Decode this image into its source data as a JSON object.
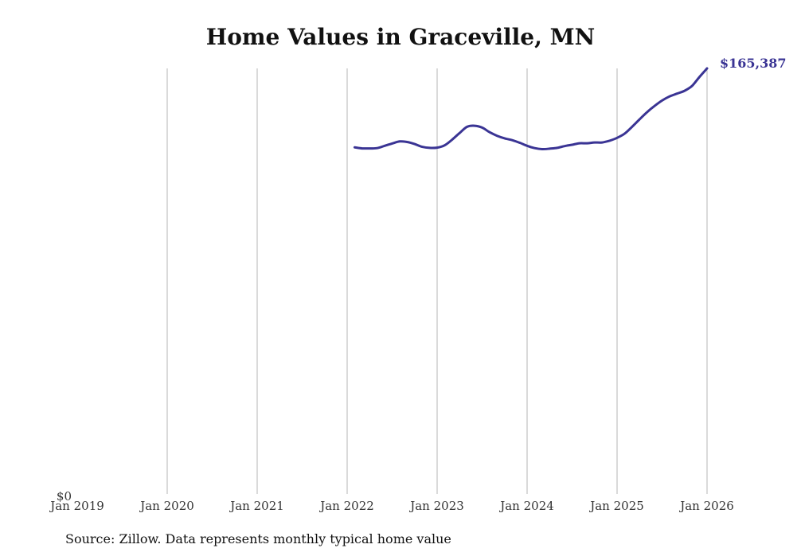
{
  "chart_data": {
    "type": "line",
    "title": "Home Values in Graceville, MN",
    "source": "Source: Zillow. Data represents monthly typical home value",
    "xlabel": "",
    "ylabel": "",
    "x_range": [
      "2019-01",
      "2026-01"
    ],
    "ylim": [
      0,
      165387
    ],
    "y_tick_labels": [
      "$0"
    ],
    "x_tick_labels": [
      "Jan 2019",
      "Jan 2020",
      "Jan 2021",
      "Jan 2022",
      "Jan 2023",
      "Jan 2024",
      "Jan 2025",
      "Jan 2026"
    ],
    "grid": "vertical",
    "line_color": "#3a3494",
    "grid_color": "#b5b5b5",
    "end_label": "$165,387",
    "series": [
      {
        "x": [
          "2022-02",
          "2022-03",
          "2022-04",
          "2022-05",
          "2022-06",
          "2022-07",
          "2022-08",
          "2022-09",
          "2022-10",
          "2022-11",
          "2022-12",
          "2023-01",
          "2023-02",
          "2023-03",
          "2023-04",
          "2023-05",
          "2023-06",
          "2023-07",
          "2023-08",
          "2023-09",
          "2023-10",
          "2023-11",
          "2023-12",
          "2024-01",
          "2024-02",
          "2024-03",
          "2024-04",
          "2024-05",
          "2024-06",
          "2024-07",
          "2024-08",
          "2024-09",
          "2024-10",
          "2024-11",
          "2024-12",
          "2025-01",
          "2025-02",
          "2025-03",
          "2025-04",
          "2025-05",
          "2025-06",
          "2025-07",
          "2025-08",
          "2025-09",
          "2025-10",
          "2025-11",
          "2025-12",
          "2026-01"
        ],
        "values": [
          134700,
          134300,
          134300,
          134400,
          135300,
          136200,
          137000,
          136800,
          136000,
          134900,
          134500,
          134600,
          135500,
          137700,
          140300,
          142700,
          143100,
          142400,
          140600,
          139200,
          138200,
          137500,
          136500,
          135300,
          134400,
          134000,
          134200,
          134500,
          135200,
          135700,
          136300,
          136300,
          136600,
          136600,
          137300,
          138400,
          140000,
          142700,
          145600,
          148400,
          150800,
          152900,
          154500,
          155600,
          156700,
          158600,
          162100,
          165387
        ]
      }
    ]
  }
}
